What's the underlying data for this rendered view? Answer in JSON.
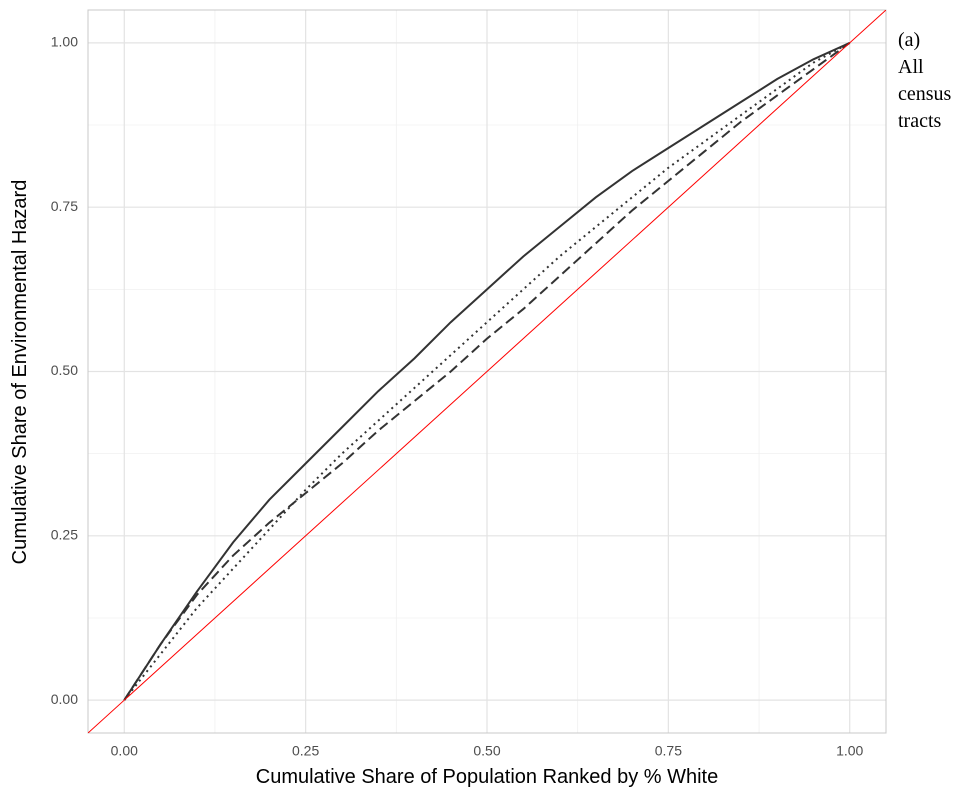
{
  "chart_data": {
    "type": "line",
    "x_label": "Cumulative Share of Population Ranked by % White",
    "y_label": "Cumulative Share of Environmental Hazard",
    "annotation": [
      "(a)",
      "All",
      "census",
      "tracts"
    ],
    "x": [
      0,
      0.05,
      0.1,
      0.15,
      0.2,
      0.25,
      0.3,
      0.35,
      0.4,
      0.45,
      0.5,
      0.55,
      0.6,
      0.65,
      0.7,
      0.75,
      0.8,
      0.85,
      0.9,
      0.95,
      1.0
    ],
    "series": [
      {
        "color": "#333333",
        "linetype": "solid",
        "values": [
          0,
          0.085,
          0.165,
          0.24,
          0.305,
          0.36,
          0.415,
          0.47,
          0.52,
          0.575,
          0.625,
          0.675,
          0.72,
          0.765,
          0.805,
          0.84,
          0.875,
          0.91,
          0.945,
          0.975,
          1.0
        ]
      },
      {
        "color": "#333333",
        "linetype": "dotted",
        "values": [
          0,
          0.07,
          0.14,
          0.2,
          0.26,
          0.32,
          0.375,
          0.425,
          0.475,
          0.525,
          0.575,
          0.625,
          0.675,
          0.72,
          0.765,
          0.81,
          0.85,
          0.89,
          0.93,
          0.97,
          1.0
        ]
      },
      {
        "color": "#333333",
        "linetype": "dashed",
        "values": [
          0,
          0.085,
          0.16,
          0.22,
          0.27,
          0.315,
          0.36,
          0.41,
          0.455,
          0.5,
          0.55,
          0.595,
          0.645,
          0.695,
          0.745,
          0.79,
          0.835,
          0.88,
          0.92,
          0.96,
          1.0
        ]
      }
    ],
    "reference_line": {
      "slope": 1,
      "intercept": 0,
      "color": "#ff0000"
    },
    "xlim": [
      -0.05,
      1.05
    ],
    "ylim": [
      -0.05,
      1.05
    ],
    "xticks": [
      {
        "value": 0,
        "label": "0.00"
      },
      {
        "value": 0.25,
        "label": "0.25"
      },
      {
        "value": 0.5,
        "label": "0.50"
      },
      {
        "value": 0.75,
        "label": "0.75"
      },
      {
        "value": 1,
        "label": "1.00"
      }
    ],
    "yticks": [
      {
        "value": 0,
        "label": "0.00"
      },
      {
        "value": 0.25,
        "label": "0.25"
      },
      {
        "value": 0.5,
        "label": "0.50"
      },
      {
        "value": 0.75,
        "label": "0.75"
      },
      {
        "value": 1,
        "label": "1.00"
      }
    ],
    "minor_ticks": [
      0.125,
      0.375,
      0.625,
      0.875
    ],
    "grid": true
  }
}
